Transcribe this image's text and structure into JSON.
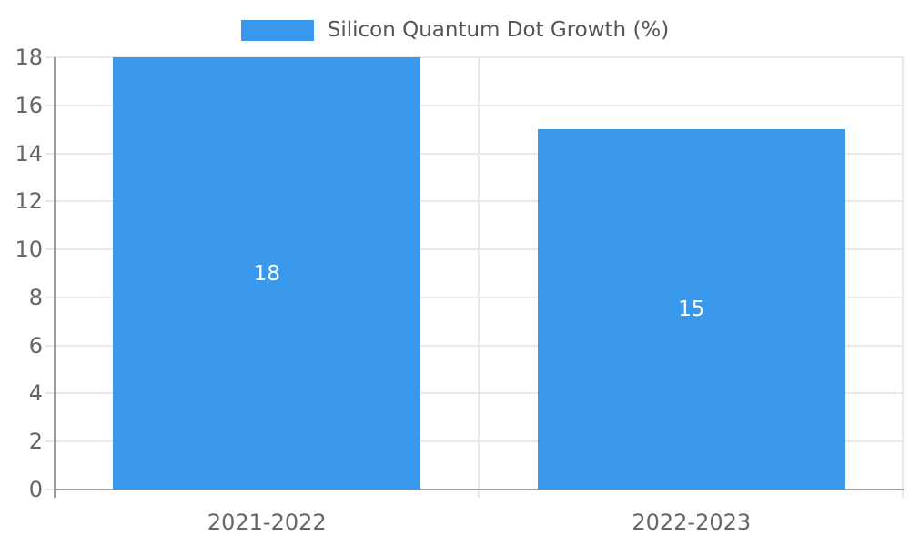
{
  "legend": {
    "label": "Silicon Quantum Dot Growth (%)"
  },
  "chart_data": {
    "type": "bar",
    "title": "Silicon Quantum Dot Growth (%)",
    "categories": [
      "2021-2022",
      "2022-2023"
    ],
    "values": [
      18,
      15
    ],
    "bar_value_labels": [
      "18",
      "15"
    ],
    "xlabel": "",
    "ylabel": "",
    "ylim": [
      0,
      18
    ],
    "yticks": [
      0,
      2,
      4,
      6,
      8,
      10,
      12,
      14,
      16,
      18
    ],
    "grid": true,
    "legend_position": "top"
  },
  "colors": {
    "bar": "#3998EC",
    "gridline": "#E9E9E9",
    "axis": "#9B9B9B",
    "tick_text": "#666666",
    "legend_text": "#555555",
    "value_label": "#FFFFFF",
    "background": "#FFFFFF"
  }
}
